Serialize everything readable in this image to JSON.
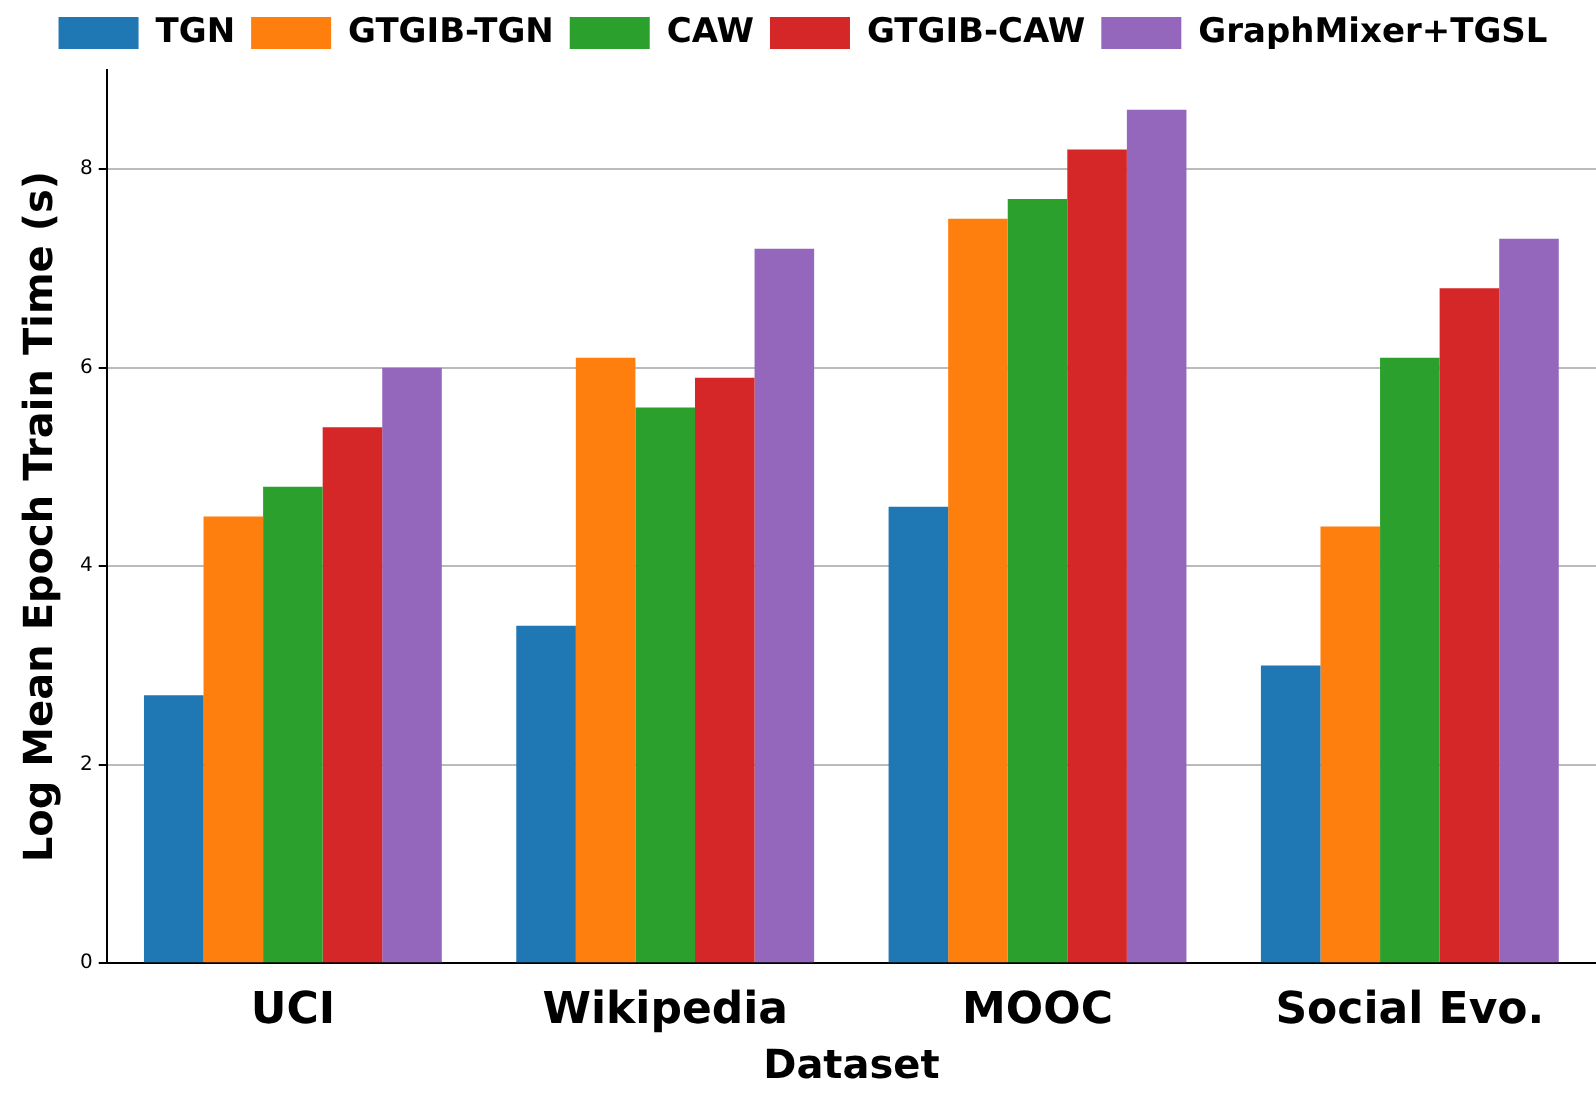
{
  "chart_data": {
    "type": "bar",
    "xlabel": "Dataset",
    "ylabel": "Log Mean Epoch Train Time (s)",
    "categories": [
      "UCI",
      "Wikipedia",
      "MOOC",
      "Social Evo."
    ],
    "series": [
      {
        "name": "TGN",
        "color": "#1f77b4",
        "values": [
          2.7,
          3.4,
          4.6,
          3.0
        ]
      },
      {
        "name": "GTGIB-TGN",
        "color": "#ff7f0e",
        "values": [
          4.5,
          6.1,
          7.5,
          4.4
        ]
      },
      {
        "name": "CAW",
        "color": "#2ca02c",
        "values": [
          4.8,
          5.6,
          7.7,
          6.1
        ]
      },
      {
        "name": "GTGIB-CAW",
        "color": "#d62728",
        "values": [
          5.4,
          5.9,
          8.2,
          6.8
        ]
      },
      {
        "name": "GraphMixer+TGSL",
        "color": "#9467bd",
        "values": [
          6.0,
          7.2,
          8.6,
          7.3
        ]
      }
    ],
    "ylim": [
      0,
      9
    ],
    "yticks": [
      0,
      2,
      4,
      6,
      8
    ],
    "grid": "y",
    "legend": "top"
  }
}
